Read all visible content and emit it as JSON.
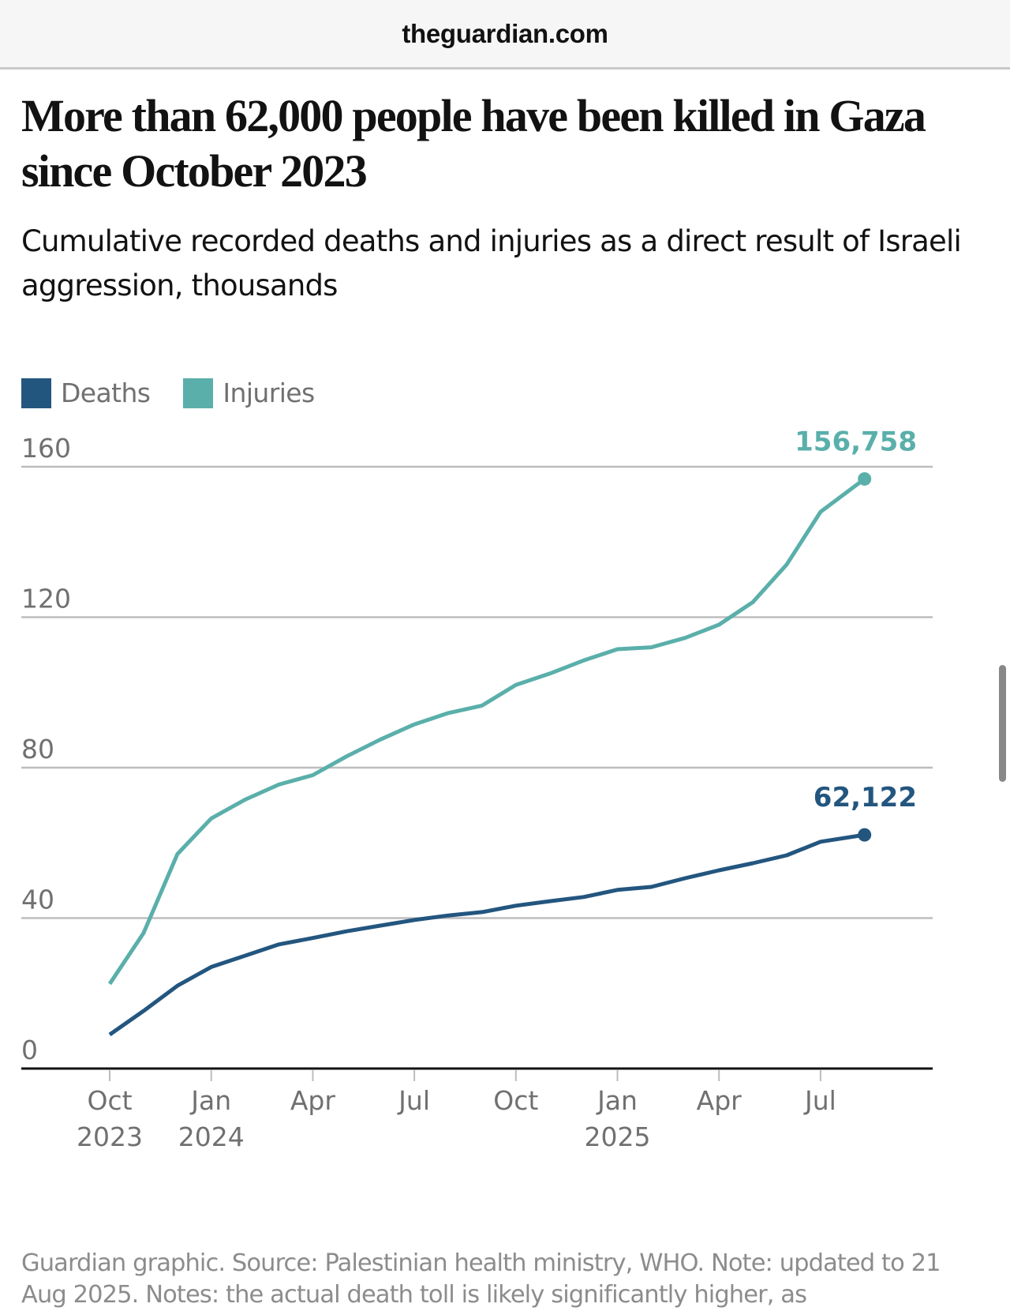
{
  "browser": {
    "url": "theguardian.com"
  },
  "article": {
    "title": "More than 62,000 people have been killed in Gaza since October 2023",
    "subtitle": "Cumulative recorded deaths and injuries as a direct result of Israeli aggression, thousands",
    "footnote": "Guardian graphic. Source: Palestinian health ministry, WHO. Note: updated to 21 Aug 2025. Notes: the actual death toll is likely significantly higher, as"
  },
  "chart_data": {
    "type": "line",
    "title": "More than 62,000 people have been killed in Gaza since October 2023",
    "subtitle": "Cumulative recorded deaths and injuries as a direct result of Israeli aggression, thousands",
    "xlabel": "",
    "ylabel": "",
    "ylim": [
      0,
      160
    ],
    "y_ticks": [
      0,
      40,
      80,
      120,
      160
    ],
    "y_tick_labels": [
      "0",
      "40",
      "80",
      "120",
      "160"
    ],
    "grid": true,
    "legend_position": "top-left",
    "x_ticks": [
      {
        "month_index": 0,
        "label": "Oct",
        "year": "2023"
      },
      {
        "month_index": 3,
        "label": "Jan",
        "year": "2024"
      },
      {
        "month_index": 6,
        "label": "Apr",
        "year": ""
      },
      {
        "month_index": 9,
        "label": "Jul",
        "year": ""
      },
      {
        "month_index": 12,
        "label": "Oct",
        "year": ""
      },
      {
        "month_index": 15,
        "label": "Jan",
        "year": "2025"
      },
      {
        "month_index": 18,
        "label": "Apr",
        "year": ""
      },
      {
        "month_index": 21,
        "label": "Jul",
        "year": ""
      }
    ],
    "x_range_months": [
      -0.8,
      25.2
    ],
    "x": [
      "2023-10",
      "2023-11",
      "2023-12",
      "2024-01",
      "2024-02",
      "2024-03",
      "2024-04",
      "2024-05",
      "2024-06",
      "2024-07",
      "2024-08",
      "2024-09",
      "2024-10",
      "2024-11",
      "2024-12",
      "2025-01",
      "2025-02",
      "2025-03",
      "2025-04",
      "2025-05",
      "2025-06",
      "2025-07",
      "2025-08-21"
    ],
    "x_month_index": [
      0,
      1,
      2,
      3,
      4,
      5,
      6,
      7,
      8,
      9,
      10,
      11,
      12,
      13,
      14,
      15,
      16,
      17,
      18,
      19,
      20,
      21,
      22.3
    ],
    "series": [
      {
        "name": "Deaths",
        "color": "#23567f",
        "values": [
          9.0,
          15.3,
          22.0,
          27.0,
          30.0,
          33.0,
          34.7,
          36.5,
          38.0,
          39.5,
          40.7,
          41.6,
          43.3,
          44.5,
          45.6,
          47.5,
          48.3,
          50.6,
          52.7,
          54.6,
          56.7,
          60.3,
          62.122
        ],
        "end_label": "62,122"
      },
      {
        "name": "Injuries",
        "color": "#5aafaa",
        "values": [
          22.5,
          36.0,
          57.0,
          66.5,
          71.5,
          75.5,
          78.0,
          83.0,
          87.5,
          91.5,
          94.5,
          96.5,
          102.0,
          105.0,
          108.5,
          111.5,
          112.0,
          114.5,
          118.0,
          124.0,
          134.0,
          148.0,
          156.758
        ],
        "end_label": "156,758"
      }
    ]
  }
}
